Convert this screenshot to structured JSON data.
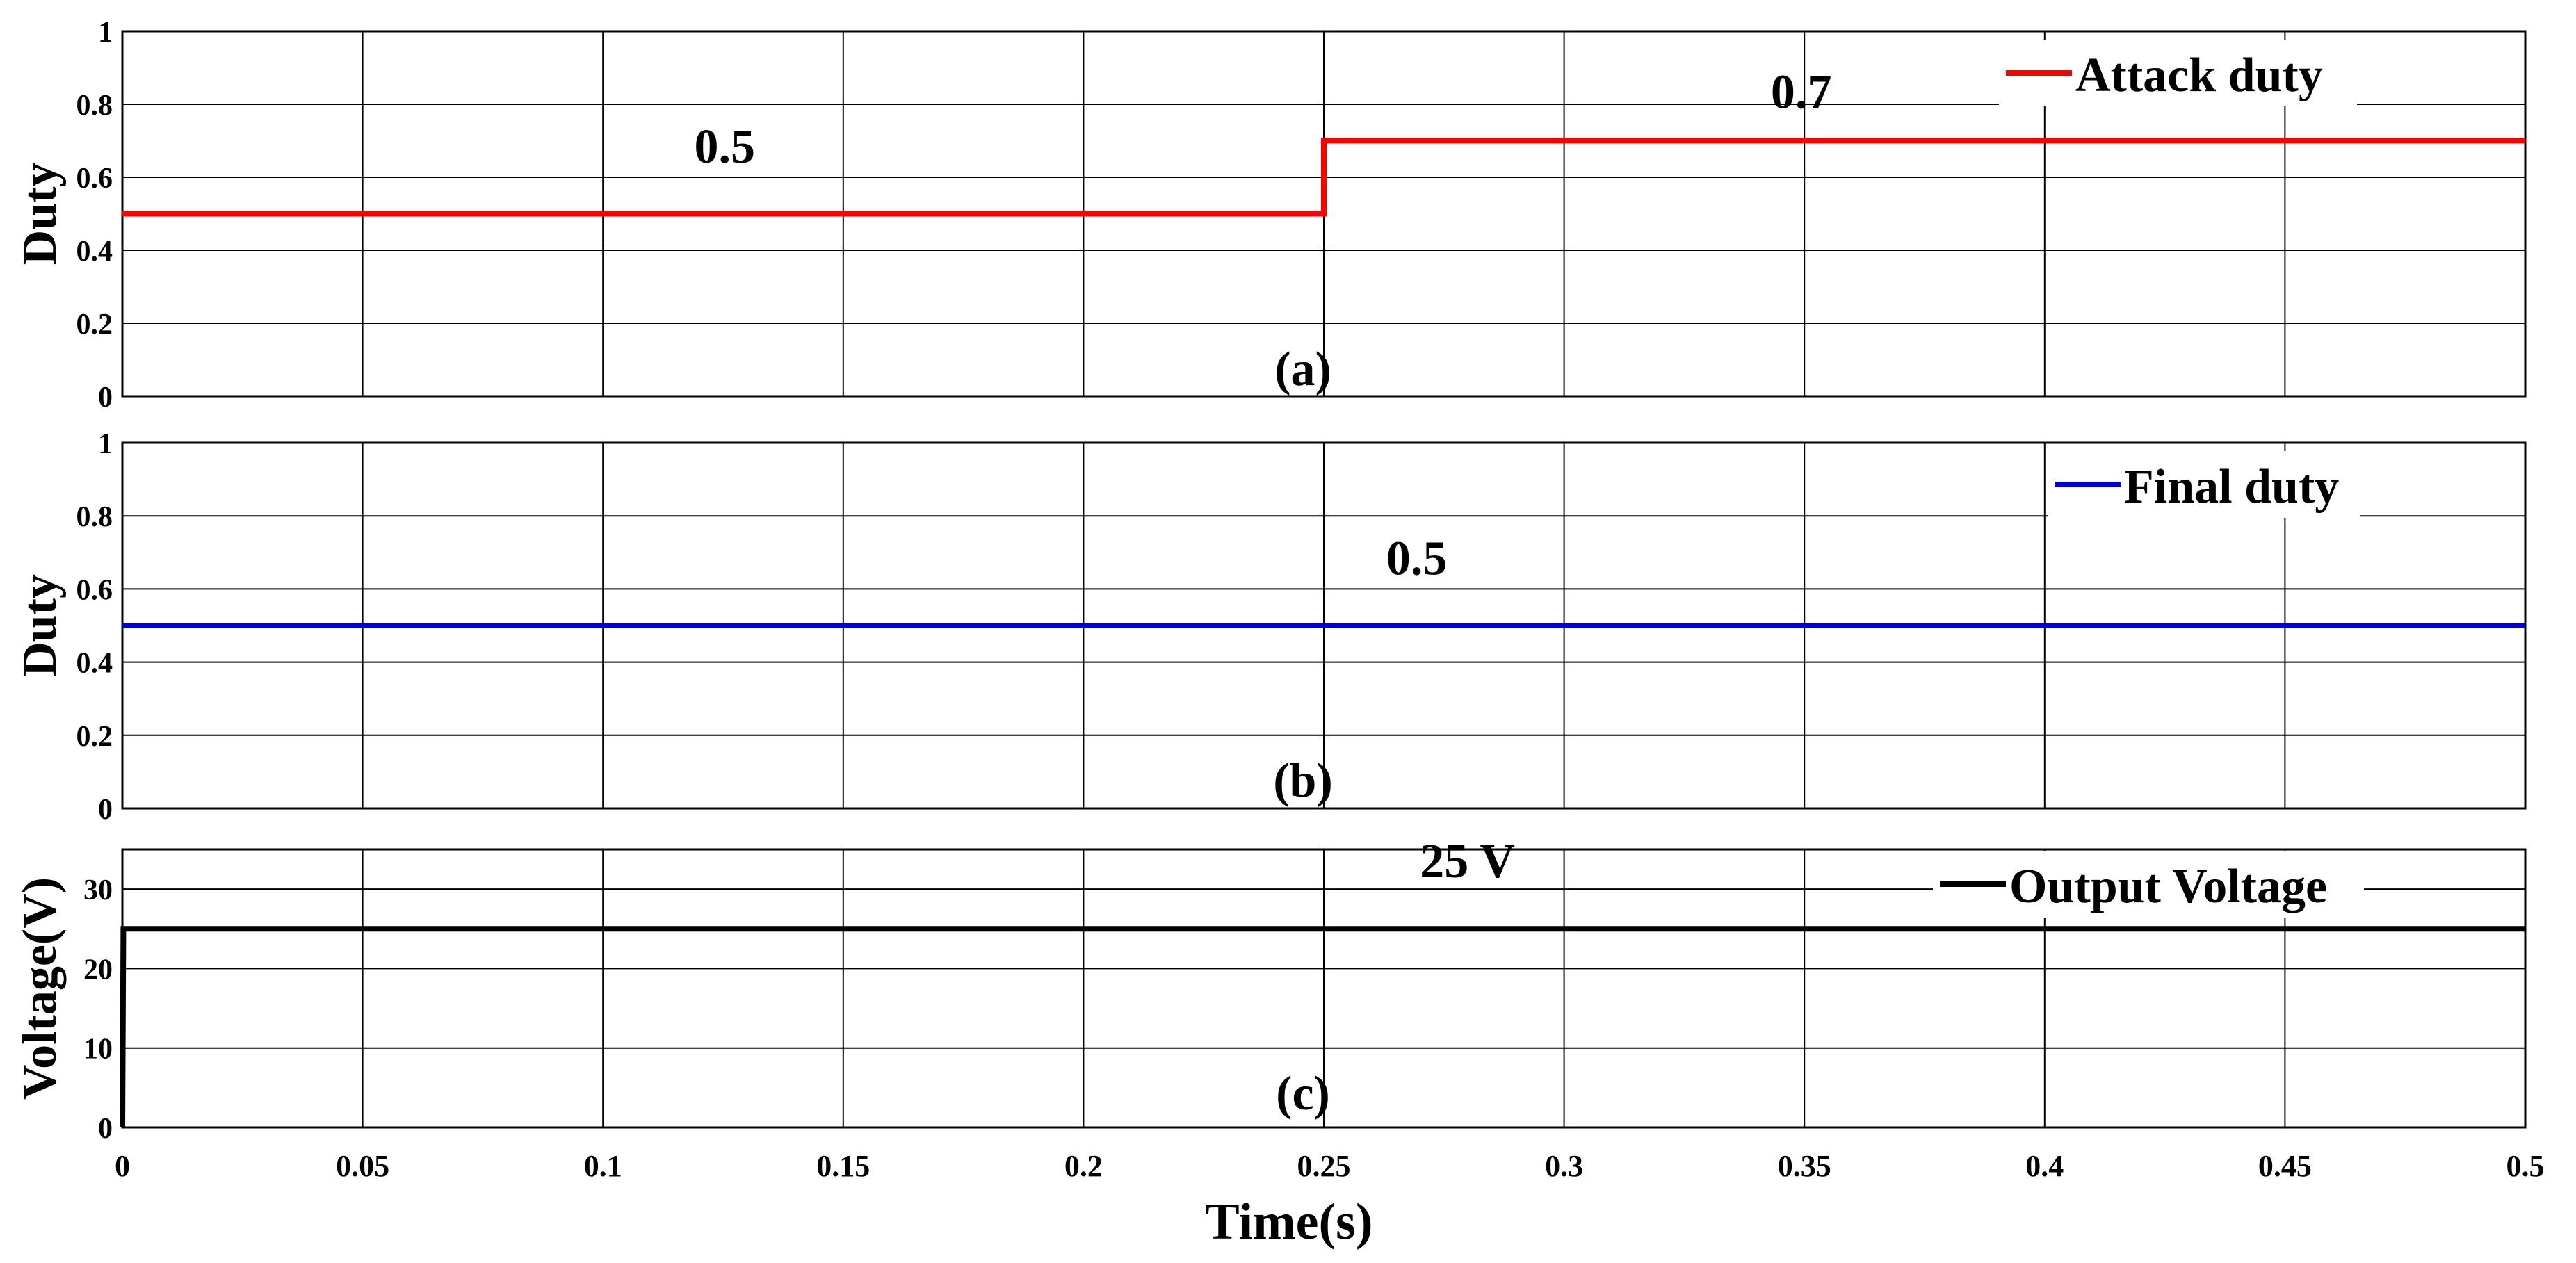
{
  "colors": {
    "attack": "#ff0000",
    "final": "#0000d0",
    "voltage": "#000000",
    "grid": "#000000"
  },
  "chart_data": [
    {
      "type": "line",
      "panel_label": "(a)",
      "ylabel": "Duty",
      "xlim": [
        0,
        0.5
      ],
      "ylim": [
        0,
        1
      ],
      "yticks": [
        "0",
        "0.2",
        "0.4",
        "0.6",
        "0.8",
        "1"
      ],
      "legend_placement": "top-right",
      "series": [
        {
          "name": "Attack duty",
          "color_key": "attack",
          "x": [
            0,
            0.25,
            0.25,
            0.5
          ],
          "y": [
            0.5,
            0.5,
            0.7,
            0.7
          ]
        }
      ],
      "annotations": [
        {
          "text": "0.5",
          "x": 0.119,
          "y": 0.64
        },
        {
          "text": "0.7",
          "x": 0.343,
          "y": 0.79
        }
      ]
    },
    {
      "type": "line",
      "panel_label": "(b)",
      "ylabel": "Duty",
      "xlim": [
        0,
        0.5
      ],
      "ylim": [
        0,
        1
      ],
      "yticks": [
        "0",
        "0.2",
        "0.4",
        "0.6",
        "0.8",
        "1"
      ],
      "legend_placement": "top-right",
      "series": [
        {
          "name": "Final duty",
          "color_key": "final",
          "x": [
            0,
            0.5
          ],
          "y": [
            0.5,
            0.5
          ]
        }
      ],
      "annotations": [
        {
          "text": "0.5",
          "x": 0.263,
          "y": 0.64
        }
      ]
    },
    {
      "type": "line",
      "panel_label": "(c)",
      "ylabel": "Voltage(V)",
      "xlabel": "Time(s)",
      "xlim": [
        0,
        0.5
      ],
      "ylim": [
        0,
        35
      ],
      "yticks": [
        "0",
        "10",
        "20",
        "30"
      ],
      "xticks": [
        "0",
        "0.05",
        "0.1",
        "0.15",
        "0.2",
        "0.25",
        "0.3",
        "0.35",
        "0.4",
        "0.45",
        "0.5"
      ],
      "legend_placement": "top-right",
      "series": [
        {
          "name": "Output Voltage",
          "color_key": "voltage",
          "x": [
            0,
            0.0002,
            0.0005,
            0.5
          ],
          "y": [
            0,
            25,
            25,
            25
          ]
        }
      ],
      "annotations": [
        {
          "text": "25 V",
          "x": 0.27,
          "y": 31.5
        }
      ]
    }
  ]
}
